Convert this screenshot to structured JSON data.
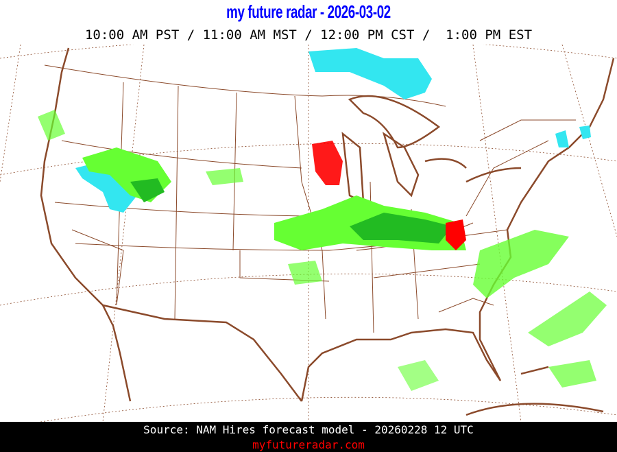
{
  "header": {
    "title": "my future radar - 2026-03-02",
    "times": "10:00 AM PST / 11:00 AM MST / 12:00 PM CST /  1:00 PM EST"
  },
  "footer": {
    "source": "Source: NAM Hires forecast model - 20260228 12 UTC",
    "site": "myfutureradar.com"
  },
  "colors": {
    "title": "#0000ff",
    "boundaries": "#8b4a2b",
    "snow": "#33e6f0",
    "rain_light": "#66ff33",
    "rain_moderate": "#22bb22",
    "heavy": "#ff0000",
    "footer_bg": "#000000",
    "site_link": "#ff0000"
  },
  "map": {
    "region": "Continental United States",
    "layers": [
      "state-boundaries",
      "lat-lon-grid",
      "precipitation"
    ]
  }
}
